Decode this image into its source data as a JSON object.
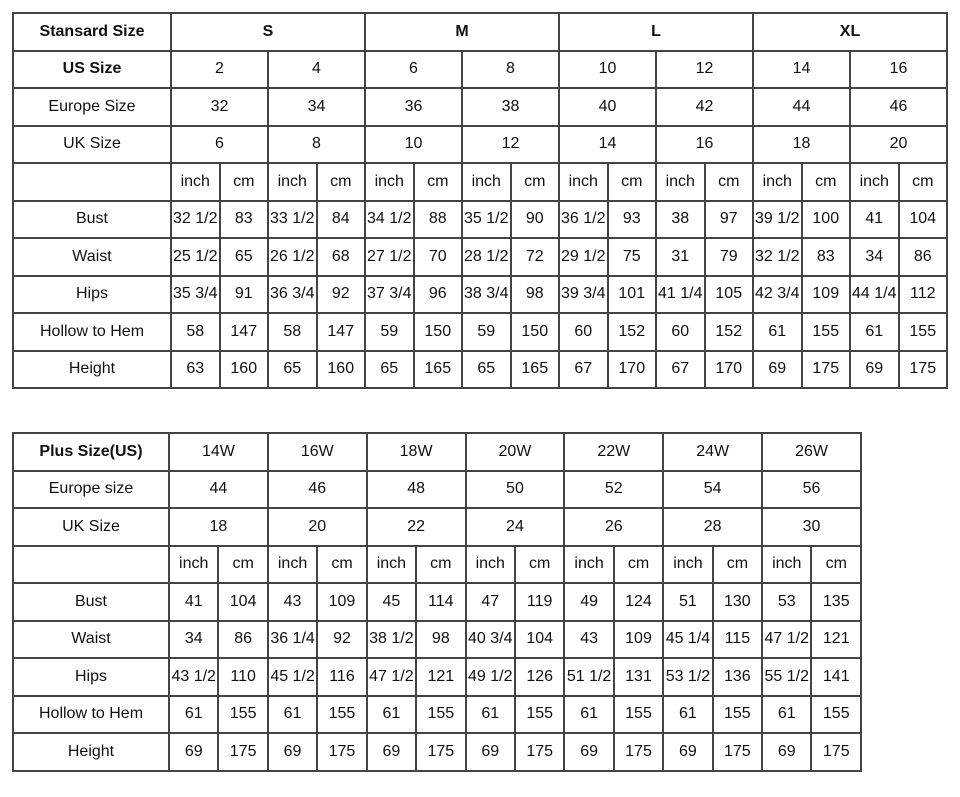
{
  "standard": {
    "header": {
      "label": "Stansard Size",
      "groups": [
        "S",
        "M",
        "L",
        "XL"
      ]
    },
    "us": {
      "label": "US Size",
      "values": [
        "2",
        "4",
        "6",
        "8",
        "10",
        "12",
        "14",
        "16"
      ]
    },
    "europe": {
      "label": "Europe Size",
      "values": [
        "32",
        "34",
        "36",
        "38",
        "40",
        "42",
        "44",
        "46"
      ]
    },
    "uk": {
      "label": "UK Size",
      "values": [
        "6",
        "8",
        "10",
        "12",
        "14",
        "16",
        "18",
        "20"
      ]
    },
    "units": [
      "inch",
      "cm",
      "inch",
      "cm",
      "inch",
      "cm",
      "inch",
      "cm",
      "inch",
      "cm",
      "inch",
      "cm",
      "inch",
      "cm",
      "inch",
      "cm"
    ],
    "measurements": [
      {
        "label": "Bust",
        "values": [
          "32 1/2",
          "83",
          "33 1/2",
          "84",
          "34 1/2",
          "88",
          "35 1/2",
          "90",
          "36 1/2",
          "93",
          "38",
          "97",
          "39 1/2",
          "100",
          "41",
          "104"
        ]
      },
      {
        "label": "Waist",
        "values": [
          "25 1/2",
          "65",
          "26 1/2",
          "68",
          "27 1/2",
          "70",
          "28 1/2",
          "72",
          "29 1/2",
          "75",
          "31",
          "79",
          "32 1/2",
          "83",
          "34",
          "86"
        ]
      },
      {
        "label": "Hips",
        "values": [
          "35 3/4",
          "91",
          "36 3/4",
          "92",
          "37 3/4",
          "96",
          "38 3/4",
          "98",
          "39 3/4",
          "101",
          "41 1/4",
          "105",
          "42 3/4",
          "109",
          "44 1/4",
          "112"
        ]
      },
      {
        "label": "Hollow to Hem",
        "values": [
          "58",
          "147",
          "58",
          "147",
          "59",
          "150",
          "59",
          "150",
          "60",
          "152",
          "60",
          "152",
          "61",
          "155",
          "61",
          "155"
        ]
      },
      {
        "label": "Height",
        "values": [
          "63",
          "160",
          "65",
          "160",
          "65",
          "165",
          "65",
          "165",
          "67",
          "170",
          "67",
          "170",
          "69",
          "175",
          "69",
          "175"
        ]
      }
    ]
  },
  "plus": {
    "header": {
      "label": "Plus Size(US)",
      "values": [
        "14W",
        "16W",
        "18W",
        "20W",
        "22W",
        "24W",
        "26W"
      ]
    },
    "europe": {
      "label": "Europe size",
      "values": [
        "44",
        "46",
        "48",
        "50",
        "52",
        "54",
        "56"
      ]
    },
    "uk": {
      "label": "UK Size",
      "values": [
        "18",
        "20",
        "22",
        "24",
        "26",
        "28",
        "30"
      ]
    },
    "units": [
      "inch",
      "cm",
      "inch",
      "cm",
      "inch",
      "cm",
      "inch",
      "cm",
      "inch",
      "cm",
      "inch",
      "cm",
      "inch",
      "cm"
    ],
    "measurements": [
      {
        "label": "Bust",
        "values": [
          "41",
          "104",
          "43",
          "109",
          "45",
          "114",
          "47",
          "119",
          "49",
          "124",
          "51",
          "130",
          "53",
          "135"
        ]
      },
      {
        "label": "Waist",
        "values": [
          "34",
          "86",
          "36 1/4",
          "92",
          "38 1/2",
          "98",
          "40 3/4",
          "104",
          "43",
          "109",
          "45 1/4",
          "115",
          "47 1/2",
          "121"
        ]
      },
      {
        "label": "Hips",
        "values": [
          "43 1/2",
          "110",
          "45 1/2",
          "116",
          "47 1/2",
          "121",
          "49 1/2",
          "126",
          "51 1/2",
          "131",
          "53 1/2",
          "136",
          "55 1/2",
          "141"
        ]
      },
      {
        "label": "Hollow to Hem",
        "values": [
          "61",
          "155",
          "61",
          "155",
          "61",
          "155",
          "61",
          "155",
          "61",
          "155",
          "61",
          "155",
          "61",
          "155"
        ]
      },
      {
        "label": "Height",
        "values": [
          "69",
          "175",
          "69",
          "175",
          "69",
          "175",
          "69",
          "175",
          "69",
          "175",
          "69",
          "175",
          "69",
          "175"
        ]
      }
    ]
  }
}
